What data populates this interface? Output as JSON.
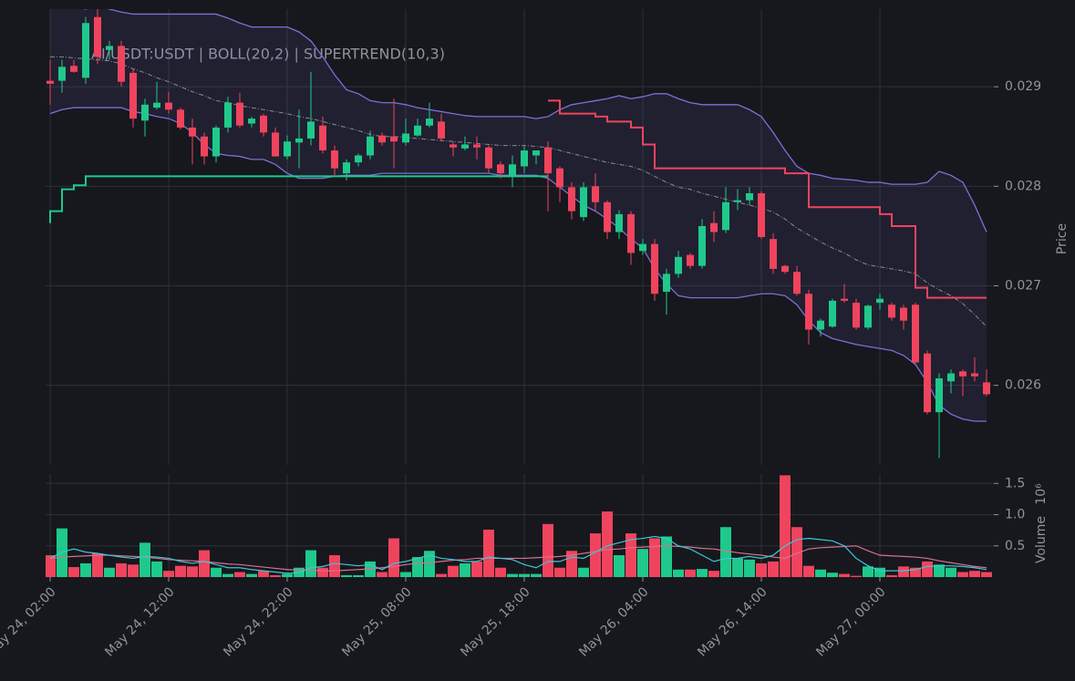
{
  "chart_data": {
    "type": "candlestick",
    "title": "AI/USDT:USDT | BOLL(20,2) | SUPERTREND(10,3)",
    "ylabel": "Price",
    "grid": true,
    "up_color": "#1fc98b",
    "down_color": "#f0445e",
    "x": [
      "May 24, 02:00",
      "May 24, 03:00",
      "May 24, 04:00",
      "May 24, 05:00",
      "May 24, 06:00",
      "May 24, 07:00",
      "May 24, 08:00",
      "May 24, 09:00",
      "May 24, 10:00",
      "May 24, 11:00",
      "May 24, 12:00",
      "May 24, 13:00",
      "May 24, 14:00",
      "May 24, 15:00",
      "May 24, 16:00",
      "May 24, 17:00",
      "May 24, 18:00",
      "May 24, 19:00",
      "May 24, 20:00",
      "May 24, 21:00",
      "May 24, 22:00",
      "May 24, 23:00",
      "May 25, 00:00",
      "May 25, 01:00",
      "May 25, 02:00",
      "May 25, 03:00",
      "May 25, 04:00",
      "May 25, 05:00",
      "May 25, 06:00",
      "May 25, 07:00",
      "May 25, 08:00",
      "May 25, 09:00",
      "May 25, 10:00",
      "May 25, 11:00",
      "May 25, 12:00",
      "May 25, 13:00",
      "May 25, 14:00",
      "May 25, 15:00",
      "May 25, 16:00",
      "May 25, 17:00",
      "May 25, 18:00",
      "May 25, 19:00",
      "May 25, 20:00",
      "May 25, 21:00",
      "May 25, 22:00",
      "May 25, 23:00",
      "May 26, 00:00",
      "May 26, 01:00",
      "May 26, 02:00",
      "May 26, 03:00",
      "May 26, 04:00",
      "May 26, 05:00",
      "May 26, 06:00",
      "May 26, 07:00",
      "May 26, 08:00",
      "May 26, 09:00",
      "May 26, 10:00",
      "May 26, 11:00",
      "May 26, 12:00",
      "May 26, 13:00",
      "May 26, 14:00",
      "May 26, 15:00",
      "May 26, 16:00",
      "May 26, 17:00",
      "May 26, 18:00",
      "May 26, 19:00",
      "May 26, 20:00",
      "May 26, 21:00",
      "May 26, 22:00",
      "May 26, 23:00",
      "May 27, 00:00",
      "May 27, 01:00",
      "May 27, 02:00",
      "May 27, 03:00",
      "May 27, 04:00",
      "May 27, 05:00",
      "May 27, 06:00",
      "May 27, 07:00",
      "May 27, 08:00",
      "May 27, 09:00"
    ],
    "open": [
      0.02906,
      0.02906,
      0.02921,
      0.02909,
      0.0297,
      0.02937,
      0.02941,
      0.02914,
      0.02866,
      0.02879,
      0.02884,
      0.02877,
      0.02859,
      0.0285,
      0.0283,
      0.02859,
      0.02884,
      0.02863,
      0.02871,
      0.02854,
      0.0283,
      0.02844,
      0.02848,
      0.02861,
      0.02836,
      0.02813,
      0.02824,
      0.02831,
      0.02851,
      0.0285,
      0.02844,
      0.02851,
      0.02861,
      0.02865,
      0.02842,
      0.02838,
      0.02842,
      0.02839,
      0.02822,
      0.02811,
      0.0282,
      0.02831,
      0.02839,
      0.02818,
      0.02799,
      0.02769,
      0.028,
      0.02784,
      0.02754,
      0.02772,
      0.02735,
      0.02742,
      0.02694,
      0.02712,
      0.02731,
      0.0272,
      0.02763,
      0.02756,
      0.02784,
      0.02786,
      0.02793,
      0.02747,
      0.0272,
      0.02714,
      0.02692,
      0.02656,
      0.02659,
      0.02687,
      0.02683,
      0.02658,
      0.02683,
      0.02681,
      0.02678,
      0.02681,
      0.02632,
      0.02573,
      0.02604,
      0.02614,
      0.02612,
      0.02603
    ],
    "high": [
      0.02927,
      0.02927,
      0.02927,
      0.0297,
      0.02978,
      0.02946,
      0.02946,
      0.02918,
      0.02888,
      0.02905,
      0.02895,
      0.02879,
      0.02868,
      0.02854,
      0.02861,
      0.0289,
      0.02894,
      0.0287,
      0.02873,
      0.02859,
      0.02851,
      0.02877,
      0.02915,
      0.0287,
      0.02841,
      0.02827,
      0.02833,
      0.02856,
      0.02854,
      0.02888,
      0.02868,
      0.02868,
      0.02884,
      0.02873,
      0.02845,
      0.0285,
      0.0285,
      0.02841,
      0.02825,
      0.02831,
      0.02841,
      0.02836,
      0.02845,
      0.0282,
      0.02804,
      0.02804,
      0.02813,
      0.02786,
      0.02776,
      0.02775,
      0.02747,
      0.02747,
      0.02717,
      0.02735,
      0.02733,
      0.02767,
      0.02775,
      0.02799,
      0.02797,
      0.02799,
      0.02795,
      0.02753,
      0.02721,
      0.0272,
      0.02696,
      0.02667,
      0.02687,
      0.02702,
      0.02687,
      0.02681,
      0.02692,
      0.02683,
      0.02681,
      0.02683,
      0.02635,
      0.02612,
      0.02616,
      0.02616,
      0.02628,
      0.02616
    ],
    "low": [
      0.02882,
      0.02894,
      0.02914,
      0.02903,
      0.02923,
      0.02927,
      0.029,
      0.02859,
      0.0285,
      0.02877,
      0.02873,
      0.02857,
      0.02822,
      0.02822,
      0.02824,
      0.02854,
      0.02859,
      0.02859,
      0.0285,
      0.0283,
      0.02827,
      0.02818,
      0.02841,
      0.02833,
      0.02811,
      0.02806,
      0.0282,
      0.02827,
      0.02841,
      0.02818,
      0.02841,
      0.0285,
      0.02859,
      0.02845,
      0.0283,
      0.02836,
      0.02827,
      0.02813,
      0.02808,
      0.02799,
      0.02813,
      0.02822,
      0.02775,
      0.02784,
      0.02767,
      0.02765,
      0.02776,
      0.02747,
      0.02747,
      0.02721,
      0.02731,
      0.02685,
      0.02671,
      0.02708,
      0.02717,
      0.02717,
      0.02744,
      0.02753,
      0.02776,
      0.02781,
      0.02747,
      0.02712,
      0.02712,
      0.0269,
      0.02641,
      0.02649,
      0.02658,
      0.02683,
      0.02656,
      0.02656,
      0.02676,
      0.02665,
      0.02656,
      0.02621,
      0.02571,
      0.02527,
      0.02592,
      0.02589,
      0.02604,
      0.02589
    ],
    "close": [
      0.02903,
      0.0292,
      0.02915,
      0.02964,
      0.0293,
      0.02941,
      0.02905,
      0.02868,
      0.02882,
      0.02884,
      0.02877,
      0.02859,
      0.0285,
      0.0283,
      0.02859,
      0.02884,
      0.02861,
      0.02868,
      0.02854,
      0.0283,
      0.02845,
      0.02848,
      0.02865,
      0.02836,
      0.02818,
      0.02824,
      0.02831,
      0.0285,
      0.02844,
      0.02845,
      0.02853,
      0.02861,
      0.02868,
      0.02848,
      0.02839,
      0.02842,
      0.02839,
      0.02818,
      0.02813,
      0.02822,
      0.02836,
      0.02836,
      0.02813,
      0.02799,
      0.02775,
      0.02799,
      0.02784,
      0.02754,
      0.02772,
      0.02733,
      0.02742,
      0.02692,
      0.02712,
      0.02729,
      0.0272,
      0.0276,
      0.02754,
      0.02784,
      0.02786,
      0.02793,
      0.02749,
      0.02717,
      0.02714,
      0.02692,
      0.02656,
      0.02665,
      0.02685,
      0.02685,
      0.02658,
      0.0268,
      0.02687,
      0.02668,
      0.02665,
      0.02623,
      0.02573,
      0.02607,
      0.02612,
      0.02609,
      0.02609,
      0.02591
    ],
    "xticks": [
      "May 24, 02:00",
      "May 24, 12:00",
      "May 24, 22:00",
      "May 25, 08:00",
      "May 25, 18:00",
      "May 26, 04:00",
      "May 26, 14:00",
      "May 27, 00:00"
    ],
    "ylim": [
      0.0252,
      0.02978
    ],
    "yticks": [
      0.026,
      0.027,
      0.028,
      0.029
    ],
    "bollinger": {
      "color": "#7d6fd8",
      "middle_color": "#8a8a95",
      "upper": [
        0.02985,
        0.02983,
        0.02981,
        0.02978,
        0.02982,
        0.02978,
        0.02975,
        0.02973,
        0.02973,
        0.02973,
        0.02973,
        0.02973,
        0.02973,
        0.02973,
        0.02973,
        0.02969,
        0.02964,
        0.0296,
        0.0296,
        0.0296,
        0.0296,
        0.02955,
        0.02946,
        0.0293,
        0.02912,
        0.02897,
        0.02893,
        0.02886,
        0.02884,
        0.02884,
        0.02882,
        0.02879,
        0.02877,
        0.02875,
        0.02873,
        0.02871,
        0.0287,
        0.0287,
        0.0287,
        0.0287,
        0.0287,
        0.02868,
        0.0287,
        0.02877,
        0.02882,
        0.02884,
        0.02886,
        0.02888,
        0.02891,
        0.02888,
        0.0289,
        0.02893,
        0.02893,
        0.02888,
        0.02884,
        0.02882,
        0.02882,
        0.02882,
        0.02882,
        0.02877,
        0.0287,
        0.02854,
        0.02836,
        0.0282,
        0.02813,
        0.02811,
        0.02808,
        0.02807,
        0.02806,
        0.02804,
        0.02804,
        0.02802,
        0.02802,
        0.02802,
        0.02804,
        0.02815,
        0.02811,
        0.02804,
        0.02781,
        0.02754
      ],
      "middle": [
        0.0293,
        0.0293,
        0.02929,
        0.02928,
        0.02927,
        0.02926,
        0.02923,
        0.02918,
        0.02914,
        0.02909,
        0.02905,
        0.029,
        0.02895,
        0.02891,
        0.02886,
        0.02884,
        0.02881,
        0.02879,
        0.02877,
        0.02875,
        0.02873,
        0.0287,
        0.02868,
        0.02865,
        0.02862,
        0.02859,
        0.02856,
        0.02852,
        0.0285,
        0.0285,
        0.02849,
        0.02848,
        0.02847,
        0.02846,
        0.02845,
        0.02844,
        0.02843,
        0.02842,
        0.02841,
        0.02841,
        0.02841,
        0.0284,
        0.02839,
        0.02836,
        0.02833,
        0.0283,
        0.02827,
        0.02824,
        0.02822,
        0.0282,
        0.02816,
        0.0281,
        0.02804,
        0.02799,
        0.02797,
        0.02793,
        0.0279,
        0.02787,
        0.02784,
        0.02781,
        0.02778,
        0.02774,
        0.02767,
        0.02758,
        0.02751,
        0.02744,
        0.02738,
        0.02733,
        0.02726,
        0.02721,
        0.02719,
        0.02717,
        0.02715,
        0.02712,
        0.02703,
        0.02696,
        0.0269,
        0.02682,
        0.02671,
        0.02659
      ],
      "lower": [
        0.02873,
        0.02877,
        0.02879,
        0.02879,
        0.02879,
        0.02879,
        0.02879,
        0.02875,
        0.02873,
        0.0287,
        0.02868,
        0.02863,
        0.02854,
        0.02842,
        0.02833,
        0.02831,
        0.0283,
        0.02827,
        0.02827,
        0.02822,
        0.02813,
        0.02808,
        0.02808,
        0.02808,
        0.0281,
        0.02811,
        0.02811,
        0.02811,
        0.02813,
        0.02813,
        0.02813,
        0.02813,
        0.02813,
        0.02813,
        0.02813,
        0.02813,
        0.02813,
        0.02813,
        0.02811,
        0.02811,
        0.02811,
        0.02811,
        0.02808,
        0.02799,
        0.0279,
        0.02781,
        0.02775,
        0.02767,
        0.02758,
        0.02747,
        0.02738,
        0.02717,
        0.02702,
        0.0269,
        0.02688,
        0.02688,
        0.02688,
        0.02688,
        0.02688,
        0.0269,
        0.02692,
        0.02692,
        0.0269,
        0.02681,
        0.02665,
        0.02653,
        0.02647,
        0.02644,
        0.02641,
        0.02639,
        0.02637,
        0.02635,
        0.0263,
        0.02621,
        0.02603,
        0.0258,
        0.02571,
        0.02566,
        0.02564,
        0.02564
      ]
    },
    "supertrend": {
      "up_color": "#1fc98b",
      "down_color": "#f0445e",
      "up": [
        0.02763,
        0.02775,
        0.02797,
        0.02801,
        0.0281,
        0.0281,
        0.0281,
        0.0281,
        0.0281,
        0.0281,
        0.0281,
        0.0281,
        0.0281,
        0.0281,
        0.0281,
        0.0281,
        0.0281,
        0.0281,
        0.0281,
        0.0281,
        0.0281,
        0.0281,
        0.0281,
        0.0281,
        0.0281,
        0.0281,
        0.0281,
        0.0281,
        0.0281,
        0.0281,
        0.0281,
        0.0281,
        0.0281,
        0.0281,
        0.0281,
        0.0281,
        0.0281,
        0.0281,
        0.0281,
        0.0281,
        0.0281,
        0.0281,
        0.0281,
        null,
        null,
        null,
        null,
        null,
        null,
        null,
        null,
        null,
        null,
        null,
        null,
        null,
        null,
        null,
        null,
        null,
        null,
        null,
        null,
        null,
        null,
        null,
        null,
        null,
        null,
        null,
        null,
        null,
        null,
        null,
        null,
        null,
        null,
        null,
        null,
        null
      ],
      "down": [
        null,
        null,
        null,
        null,
        null,
        null,
        null,
        null,
        null,
        null,
        null,
        null,
        null,
        null,
        null,
        null,
        null,
        null,
        null,
        null,
        null,
        null,
        null,
        null,
        null,
        null,
        null,
        null,
        null,
        null,
        null,
        null,
        null,
        null,
        null,
        null,
        null,
        null,
        null,
        null,
        null,
        null,
        0.02886,
        0.02886,
        0.02873,
        0.02873,
        0.02873,
        0.0287,
        0.02865,
        0.02865,
        0.02859,
        0.02842,
        0.02818,
        0.02818,
        0.02818,
        0.02818,
        0.02818,
        0.02818,
        0.02818,
        0.02818,
        0.02818,
        0.02818,
        0.02818,
        0.02813,
        0.02813,
        0.02779,
        0.02779,
        0.02779,
        0.02779,
        0.02779,
        0.02779,
        0.02772,
        0.0276,
        0.0276,
        0.02698,
        0.02688,
        0.02688,
        0.02688,
        0.02688,
        0.02688
      ]
    },
    "volume": {
      "ylabel": "Volume",
      "scale_label": "10⁶",
      "ylim": [
        0,
        1.65
      ],
      "yticks": [
        0.5,
        {
          "value": 1,
          "label": "1.0"
        },
        1.5
      ],
      "values": [
        0.35,
        0.78,
        0.16,
        0.22,
        0.38,
        0.15,
        0.22,
        0.2,
        0.55,
        0.25,
        0.1,
        0.18,
        0.17,
        0.43,
        0.15,
        0.05,
        0.08,
        0.05,
        0.1,
        0.03,
        0.05,
        0.15,
        0.43,
        0.15,
        0.35,
        0.03,
        0.03,
        0.25,
        0.08,
        0.62,
        0.08,
        0.32,
        0.42,
        0.05,
        0.18,
        0.22,
        0.25,
        0.76,
        0.15,
        0.05,
        0.05,
        0.05,
        0.85,
        0.15,
        0.42,
        0.15,
        0.7,
        1.05,
        0.35,
        0.7,
        0.45,
        0.62,
        0.65,
        0.12,
        0.12,
        0.13,
        0.1,
        0.8,
        0.3,
        0.28,
        0.22,
        0.25,
        1.63,
        0.8,
        0.18,
        0.12,
        0.07,
        0.05,
        0.02,
        0.17,
        0.15,
        0.03,
        0.17,
        0.15,
        0.25,
        0.2,
        0.15,
        0.08,
        0.1,
        0.08
      ],
      "ma": [
        {
          "color": "#d9708f",
          "values": [
            0.3,
            0.32,
            0.33,
            0.34,
            0.35,
            0.35,
            0.34,
            0.33,
            0.32,
            0.3,
            0.28,
            0.27,
            0.26,
            0.25,
            0.23,
            0.21,
            0.2,
            0.18,
            0.16,
            0.14,
            0.12,
            0.11,
            0.11,
            0.1,
            0.1,
            0.11,
            0.12,
            0.13,
            0.15,
            0.17,
            0.2,
            0.22,
            0.23,
            0.25,
            0.27,
            0.28,
            0.3,
            0.3,
            0.3,
            0.3,
            0.3,
            0.31,
            0.32,
            0.33,
            0.35,
            0.38,
            0.41,
            0.44,
            0.45,
            0.47,
            0.48,
            0.49,
            0.5,
            0.49,
            0.48,
            0.46,
            0.45,
            0.42,
            0.39,
            0.37,
            0.35,
            0.32,
            0.3,
            0.38,
            0.45,
            0.47,
            0.48,
            0.49,
            0.5,
            0.42,
            0.35,
            0.34,
            0.33,
            0.32,
            0.3,
            0.26,
            0.23,
            0.2,
            0.17,
            0.15
          ]
        },
        {
          "color": "#3fc6d8",
          "values": [
            0.3,
            0.4,
            0.45,
            0.4,
            0.38,
            0.35,
            0.32,
            0.3,
            0.33,
            0.32,
            0.3,
            0.25,
            0.22,
            0.25,
            0.2,
            0.15,
            0.15,
            0.12,
            0.1,
            0.08,
            0.06,
            0.07,
            0.15,
            0.17,
            0.22,
            0.2,
            0.18,
            0.2,
            0.12,
            0.22,
            0.25,
            0.3,
            0.35,
            0.3,
            0.28,
            0.25,
            0.25,
            0.32,
            0.3,
            0.28,
            0.2,
            0.15,
            0.25,
            0.25,
            0.32,
            0.3,
            0.4,
            0.5,
            0.55,
            0.6,
            0.62,
            0.65,
            0.62,
            0.5,
            0.45,
            0.35,
            0.25,
            0.3,
            0.3,
            0.33,
            0.3,
            0.35,
            0.5,
            0.6,
            0.62,
            0.6,
            0.58,
            0.5,
            0.3,
            0.18,
            0.1,
            0.1,
            0.1,
            0.12,
            0.17,
            0.18,
            0.18,
            0.17,
            0.15,
            0.12
          ]
        }
      ]
    }
  }
}
